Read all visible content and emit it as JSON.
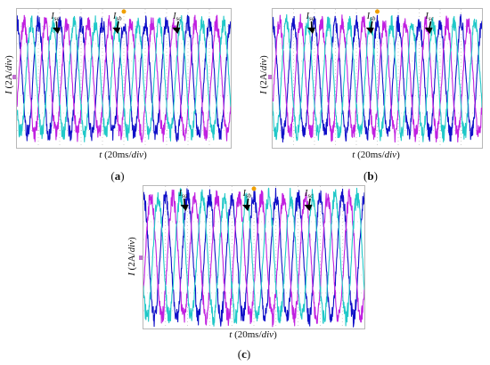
{
  "colors": {
    "phase_a": "#1010c8",
    "phase_b": "#c020e0",
    "phase_c": "#20c8c8",
    "grid": "#b0b0b0",
    "marker": "#f0a000"
  },
  "chart_data": [
    {
      "type": "line",
      "panel": "a",
      "caption_open": "(",
      "caption_letter": "a",
      "caption_close": ")",
      "ylabel_var": "I",
      "ylabel_unit": " (2A/",
      "ylabel_div": "div",
      "ylabel_close": ")",
      "xlabel_var": "t",
      "xlabel_unit": " (20ms/",
      "xlabel_div": "div",
      "xlabel_close": ")",
      "series_labels": [
        "I",
        "I",
        "I"
      ],
      "series_subscripts": [
        "sa",
        "sb",
        "sc"
      ],
      "grid": true,
      "x_divisions": 10,
      "y_divisions": 8,
      "series": [
        {
          "phase": "a",
          "amplitude_div": 3.2,
          "cycles": 10,
          "phase_deg": 90
        },
        {
          "phase": "b",
          "amplitude_div": 3.2,
          "cycles": 10,
          "phase_deg": -30
        },
        {
          "phase": "c",
          "amplitude_div": 3.2,
          "cycles": 10,
          "phase_deg": 210
        }
      ]
    },
    {
      "type": "line",
      "panel": "b",
      "caption_open": "(",
      "caption_letter": "b",
      "caption_close": ")",
      "ylabel_var": "I",
      "ylabel_unit": " (2A/",
      "ylabel_div": "div",
      "ylabel_close": ")",
      "xlabel_var": "t",
      "xlabel_unit": " (20ms/",
      "xlabel_div": "div",
      "xlabel_close": ")",
      "series_labels": [
        "I",
        "I",
        "I"
      ],
      "series_subscripts": [
        "sa",
        "sb",
        "sc"
      ],
      "grid": true,
      "x_divisions": 10,
      "y_divisions": 8,
      "series": [
        {
          "phase": "a",
          "amplitude_div": 3.2,
          "cycles": 10,
          "phase_deg": 90
        },
        {
          "phase": "b",
          "amplitude_div": 3.2,
          "cycles": 10,
          "phase_deg": -30
        },
        {
          "phase": "c",
          "amplitude_div": 3.2,
          "cycles": 10,
          "phase_deg": 210
        }
      ]
    },
    {
      "type": "line",
      "panel": "c",
      "caption_open": "(",
      "caption_letter": "c",
      "caption_close": ")",
      "ylabel_var": "I",
      "ylabel_unit": " (2A/",
      "ylabel_div": "div",
      "ylabel_close": ")",
      "xlabel_var": "t",
      "xlabel_unit": " (20ms/",
      "xlabel_div": "div",
      "xlabel_close": ")",
      "series_labels": [
        "I",
        "I",
        "I"
      ],
      "series_subscripts": [
        "sa",
        "sb",
        "sc"
      ],
      "grid": true,
      "x_divisions": 10,
      "y_divisions": 8,
      "series": [
        {
          "phase": "a",
          "amplitude_div": 3.4,
          "cycles": 10,
          "phase_deg": 90
        },
        {
          "phase": "b",
          "amplitude_div": 3.4,
          "cycles": 10,
          "phase_deg": -30
        },
        {
          "phase": "c",
          "amplitude_div": 3.4,
          "cycles": 10,
          "phase_deg": 210
        }
      ]
    }
  ]
}
